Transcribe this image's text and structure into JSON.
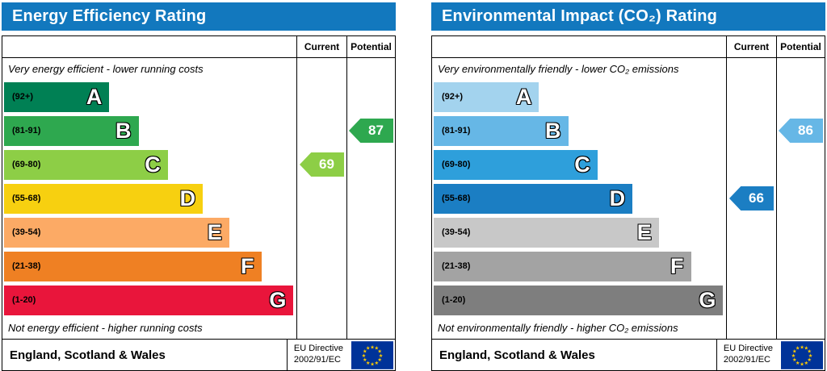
{
  "chart_data": [
    {
      "type": "bar",
      "id": "energy-efficiency",
      "title": "Energy Efficiency Rating",
      "header_color": "#1278be",
      "columns": {
        "current": "Current",
        "potential": "Potential"
      },
      "top_note": "Very energy efficient - lower running costs",
      "bottom_note": "Not energy efficient - higher running costs",
      "categories": [
        "A",
        "B",
        "C",
        "D",
        "E",
        "F",
        "G"
      ],
      "bands": [
        {
          "range": "(92+)",
          "letter": "A",
          "color": "#008054",
          "width_pct": 36
        },
        {
          "range": "(81-91)",
          "letter": "B",
          "color": "#2ea84f",
          "width_pct": 46
        },
        {
          "range": "(69-80)",
          "letter": "C",
          "color": "#8dce46",
          "width_pct": 56
        },
        {
          "range": "(55-68)",
          "letter": "D",
          "color": "#f7d010",
          "width_pct": 68
        },
        {
          "range": "(39-54)",
          "letter": "E",
          "color": "#fcaa65",
          "width_pct": 77
        },
        {
          "range": "(21-38)",
          "letter": "F",
          "color": "#ef8023",
          "width_pct": 88
        },
        {
          "range": "(1-20)",
          "letter": "G",
          "color": "#e9153b",
          "width_pct": 99
        }
      ],
      "current": {
        "value": 69,
        "band": "C",
        "band_index": 2,
        "color": "#8dce46"
      },
      "potential": {
        "value": 87,
        "band": "B",
        "band_index": 1,
        "color": "#2ea84f"
      },
      "footer": {
        "region": "England, Scotland & Wales",
        "directive_line1": "EU Directive",
        "directive_line2": "2002/91/EC"
      }
    },
    {
      "type": "bar",
      "id": "environmental-impact-co2",
      "title": "Environmental Impact (CO₂) Rating",
      "header_color": "#1278be",
      "columns": {
        "current": "Current",
        "potential": "Potential"
      },
      "top_note": "Very environmentally friendly - lower CO₂ emissions",
      "bottom_note": "Not environmentally friendly - higher CO₂ emissions",
      "categories": [
        "A",
        "B",
        "C",
        "D",
        "E",
        "F",
        "G"
      ],
      "bands": [
        {
          "range": "(92+)",
          "letter": "A",
          "color": "#a3d3ee",
          "width_pct": 36
        },
        {
          "range": "(81-91)",
          "letter": "B",
          "color": "#66b7e6",
          "width_pct": 46
        },
        {
          "range": "(69-80)",
          "letter": "C",
          "color": "#2e9fdb",
          "width_pct": 56
        },
        {
          "range": "(55-68)",
          "letter": "D",
          "color": "#1b7ec3",
          "width_pct": 68
        },
        {
          "range": "(39-54)",
          "letter": "E",
          "color": "#c8c8c8",
          "width_pct": 77
        },
        {
          "range": "(21-38)",
          "letter": "F",
          "color": "#a3a3a3",
          "width_pct": 88
        },
        {
          "range": "(1-20)",
          "letter": "G",
          "color": "#7e7e7e",
          "width_pct": 99
        }
      ],
      "current": {
        "value": 66,
        "band": "D",
        "band_index": 3,
        "color": "#1b7ec3"
      },
      "potential": {
        "value": 86,
        "band": "B",
        "band_index": 1,
        "color": "#66b7e6"
      },
      "footer": {
        "region": "England, Scotland & Wales",
        "directive_line1": "EU Directive",
        "directive_line2": "2002/91/EC"
      }
    }
  ]
}
